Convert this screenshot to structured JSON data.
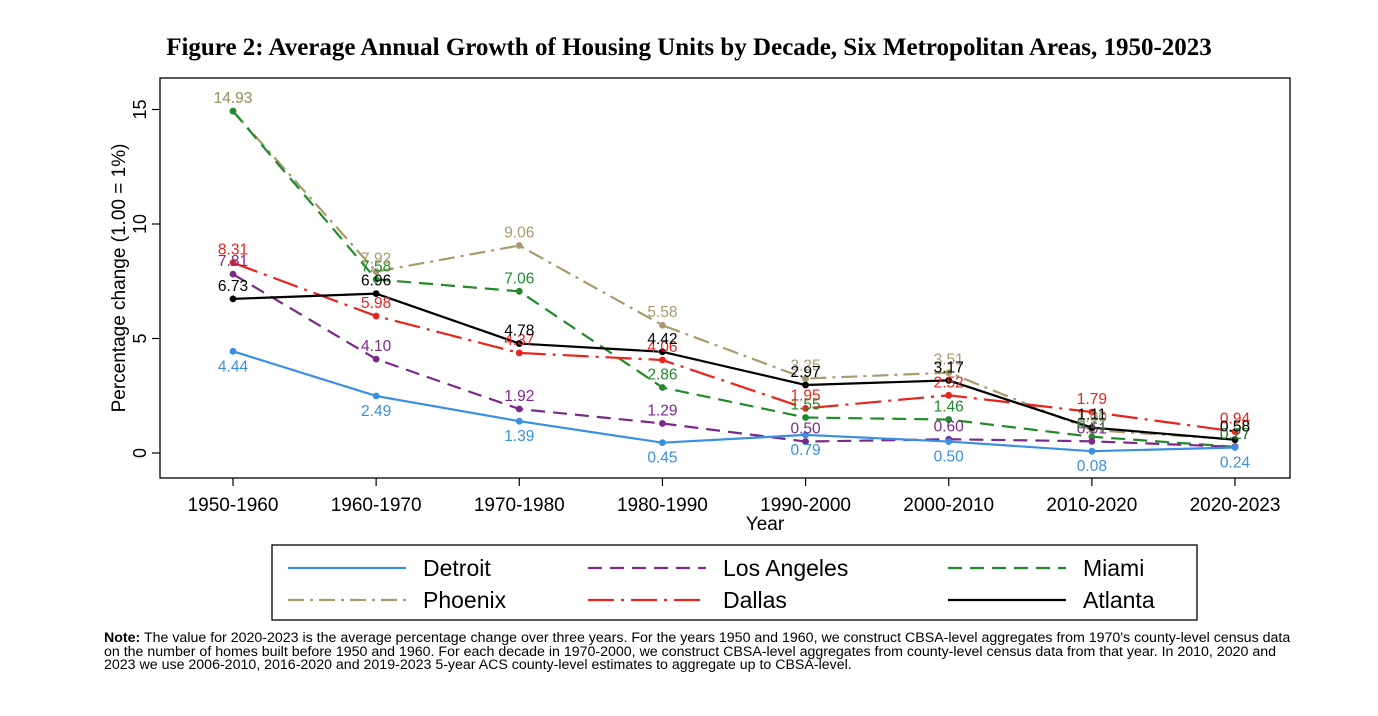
{
  "chart_data": {
    "type": "line",
    "title": "Figure 2: Average Annual Growth of Housing Units by Decade, Six Metropolitan Areas, 1950-2023",
    "xlabel": "Year",
    "ylabel": "Percentage change (1.00 = 1%)",
    "categories": [
      "1950-1960",
      "1960-1970",
      "1970-1980",
      "1980-1990",
      "1990-2000",
      "2000-2010",
      "2010-2020",
      "2020-2023"
    ],
    "ylim": [
      -1,
      16
    ],
    "yticks": [
      0,
      5,
      10,
      15
    ],
    "series": [
      {
        "name": "Detroit",
        "color": "#3a8fe0",
        "dash": "solid",
        "values": [
          4.44,
          2.49,
          1.39,
          0.45,
          0.79,
          0.5,
          0.08,
          0.24
        ],
        "labels": [
          "4.44",
          "2.49",
          "1.39",
          "0.45",
          "0.79",
          "0.50",
          "0.08",
          "0.24"
        ]
      },
      {
        "name": "Los Angeles",
        "color": "#7a2a8a",
        "dash": "dash",
        "values": [
          7.81,
          4.1,
          1.92,
          1.29,
          0.5,
          0.6,
          0.51,
          0.27
        ],
        "labels": [
          "7.81",
          "4.10",
          "1.92",
          "1.29",
          "0.50",
          "0.60",
          "0.51",
          "0.27"
        ]
      },
      {
        "name": "Miami",
        "color": "#218a2a",
        "dash": "dash",
        "values": [
          14.93,
          7.58,
          7.06,
          2.86,
          1.55,
          1.46,
          0.71,
          0.27
        ],
        "labels": [
          "14.93",
          "7.58",
          "7.06",
          "2.86",
          "1.55",
          "1.46",
          "0.71",
          "0.27"
        ]
      },
      {
        "name": "Phoenix",
        "color": "#a89a6e",
        "dash": "dashdot",
        "values": [
          14.93,
          7.92,
          9.06,
          5.58,
          3.25,
          3.51,
          1.0,
          0.6
        ],
        "labels": [
          "14.93",
          "7.92",
          "9.06",
          "5.58",
          "3.25",
          "3.51",
          "1.00",
          "0.60"
        ]
      },
      {
        "name": "Dallas",
        "color": "#e8241c",
        "dash": "longdashdot",
        "values": [
          8.31,
          5.98,
          4.37,
          4.06,
          1.95,
          2.52,
          1.79,
          0.94
        ],
        "labels": [
          "8.31",
          "5.98",
          "4.37",
          "4.06",
          "1.95",
          "2.52",
          "1.79",
          "0.94"
        ]
      },
      {
        "name": "Atlanta",
        "color": "#000000",
        "dash": "solid",
        "values": [
          6.73,
          6.96,
          4.78,
          4.42,
          2.97,
          3.17,
          1.11,
          0.58
        ],
        "labels": [
          "6.73",
          "6.96",
          "4.78",
          "4.42",
          "2.97",
          "3.17",
          "1.11",
          "0.58"
        ]
      }
    ],
    "legend": {
      "position": "bottom",
      "columns": 3,
      "order": [
        "Detroit",
        "Los Angeles",
        "Miami",
        "Phoenix",
        "Dallas",
        "Atlanta"
      ]
    }
  },
  "note": {
    "label": "Note:",
    "text": "The value for 2020-2023 is the average percentage change over three years. For the years 1950 and 1960, we construct CBSA-level aggregates from 1970's county-level census data on the number of homes built before 1950 and 1960. For each decade in 1970-2000, we construct CBSA-level aggregates from county-level census data from that year. In 2010, 2020 and 2023 we use 2006-2010, 2016-2020 and 2019-2023 5-year ACS county-level estimates to aggregate up to CBSA-level."
  }
}
